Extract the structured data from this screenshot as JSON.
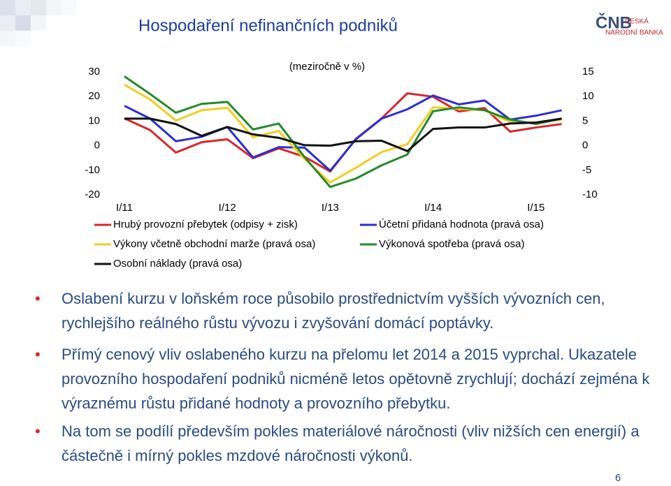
{
  "slide": {
    "title": "Hospodaření nefinančních podniků",
    "logo": {
      "mark": "ČNB",
      "line1": "ČESKÁ",
      "line2": "NÁRODNÍ BANKA"
    },
    "bullets": [
      "Oslabení kurzu v loňském roce působilo prostřednictvím vyšších vývozních cen, rychlejšího reálného růstu vývozu i zvyšování domácí poptávky.",
      "Přímý cenový vliv oslabeného kurzu na přelomu let 2014 a 2015 vyprchal. Ukazatele provozního hospodaření podniků nicméně letos opětovně zrychlují; dochází zejména k výraznému růstu přidané hodnoty a provozního přebytku.",
      "Na tom se podílí především pokles materiálové náročnosti (vliv nižších cen energií) a částečně i mírný pokles mzdové náročnosti výkonů."
    ],
    "page_number": "6"
  },
  "chart_data": {
    "type": "line",
    "title": "(meziročně v %)",
    "categories": [
      "I/11",
      null,
      null,
      null,
      "I/12",
      null,
      null,
      null,
      "I/13",
      null,
      null,
      null,
      "I/14",
      null,
      null,
      null,
      "I/15",
      null
    ],
    "ylim": [
      -20,
      30
    ],
    "yticks": [
      -20,
      -10,
      0,
      10,
      20,
      30
    ],
    "y2lim": [
      -10,
      15
    ],
    "y2ticks": [
      -10,
      -5,
      0,
      5,
      10,
      15
    ],
    "series": [
      {
        "name": "Hrubý provozní přebytek (odpisy + zisk)",
        "color": "#d9262b",
        "axis": "y",
        "values": [
          11.1,
          6.3,
          -2.8,
          1.4,
          2.6,
          -5.1,
          -1.1,
          -4.5,
          -10.5,
          2.8,
          11.1,
          21.3,
          19.9,
          13.9,
          15.3,
          5.7,
          7.4,
          8.8
        ]
      },
      {
        "name": "Účetní přidaná hodnota (pravá osa)",
        "color": "#2a2fd0",
        "axis": "y2",
        "values": [
          8.1,
          5.5,
          0.9,
          1.8,
          3.8,
          -2.4,
          -0.3,
          -0.4,
          -5.1,
          1.3,
          5.5,
          7.4,
          10.2,
          8.4,
          9.2,
          5.3,
          6.1,
          7.2
        ]
      },
      {
        "name": "Výkony včetně obchodní marže (pravá osa)",
        "color": "#f2cd1f",
        "axis": "y2",
        "values": [
          12.4,
          9.4,
          5.1,
          7.2,
          7.7,
          1.7,
          3.0,
          -2.7,
          -7.5,
          -4.5,
          -1.3,
          0.3,
          7.8,
          7.5,
          7.2,
          4.8,
          4.7,
          5.3
        ]
      },
      {
        "name": "Výkonová spotřeba (pravá osa)",
        "color": "#238a2a",
        "axis": "y2",
        "values": [
          14.1,
          10.5,
          6.7,
          8.5,
          8.9,
          3.3,
          4.5,
          -2.3,
          -8.4,
          -6.7,
          -4.0,
          -1.8,
          7.0,
          7.8,
          7.2,
          5.3,
          4.4,
          5.5
        ]
      },
      {
        "name": "Osobní náklady (pravá osa)",
        "color": "#111111",
        "axis": "y2",
        "values": [
          5.5,
          5.5,
          4.4,
          2.0,
          3.8,
          2.3,
          1.6,
          0.1,
          0.0,
          0.9,
          1.0,
          -1.1,
          3.4,
          3.7,
          3.7,
          4.5,
          4.7,
          5.5
        ]
      }
    ]
  }
}
